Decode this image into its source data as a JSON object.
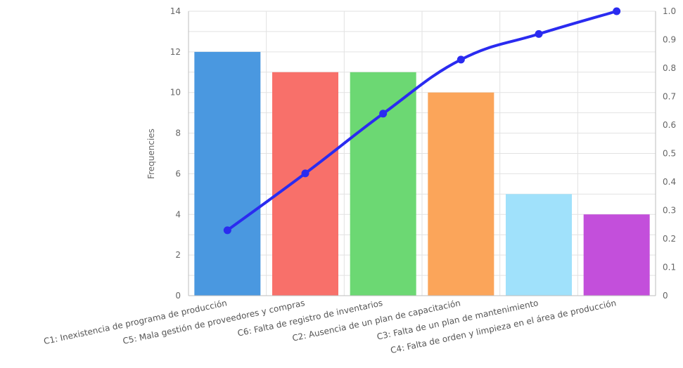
{
  "chart_data": {
    "type": "bar",
    "ylabel": "Frequencies",
    "ylim": [
      0,
      14
    ],
    "y_ticks": [
      "0",
      "2",
      "4",
      "6",
      "8",
      "10",
      "12",
      "14"
    ],
    "y2lim": [
      0,
      1.0
    ],
    "y2_ticks": [
      "0",
      "0.1",
      "0.2",
      "0.3",
      "0.4",
      "0.5",
      "0.6",
      "0.7",
      "0.8",
      "0.9",
      "1.0"
    ],
    "grid": true,
    "categories": [
      "C1: Inexistencia de programa de producción",
      "C5: Mala gestión de proveedores y compras",
      "C6: Falta de registro de inventarios",
      "C2: Ausencia de un plan de capacitación",
      "C3: Falta de un plan de mantenimiento",
      "C4: Falta de orden y limpieza en el área de producción"
    ],
    "series": [
      {
        "type": "bar",
        "axis": "left",
        "values": [
          12,
          11,
          11,
          10,
          5,
          4
        ],
        "colors": [
          "#4a98e0",
          "#f8706a",
          "#6cd873",
          "#fba55a",
          "#a0e1fb",
          "#c34fdb"
        ]
      },
      {
        "type": "line",
        "axis": "right",
        "values": [
          0.23,
          0.43,
          0.64,
          0.83,
          0.92,
          1.0
        ],
        "color": "#2a2bf0"
      }
    ]
  }
}
